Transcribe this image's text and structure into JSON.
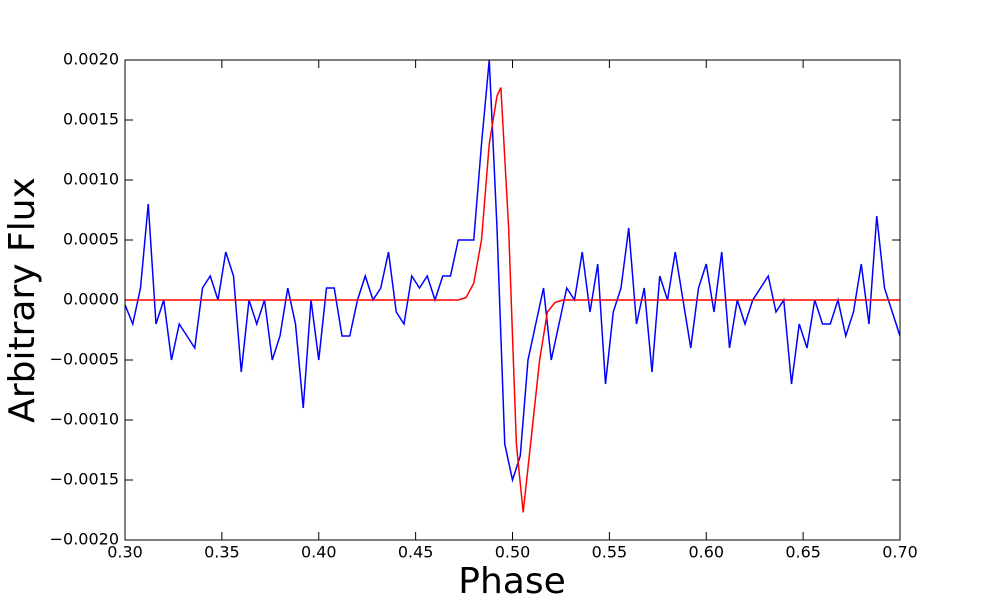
{
  "chart_data": {
    "type": "line",
    "xlabel": "Phase",
    "ylabel": "Arbitrary Flux",
    "xlim": [
      0.3,
      0.7
    ],
    "ylim": [
      -0.002,
      0.002
    ],
    "xticks": [
      {
        "value": 0.3,
        "label": "0.30"
      },
      {
        "value": 0.35,
        "label": "0.35"
      },
      {
        "value": 0.4,
        "label": "0.40"
      },
      {
        "value": 0.45,
        "label": "0.45"
      },
      {
        "value": 0.5,
        "label": "0.50"
      },
      {
        "value": 0.55,
        "label": "0.55"
      },
      {
        "value": 0.6,
        "label": "0.60"
      },
      {
        "value": 0.65,
        "label": "0.65"
      },
      {
        "value": 0.7,
        "label": "0.70"
      }
    ],
    "yticks": [
      {
        "value": -0.002,
        "label": "−0.0020"
      },
      {
        "value": -0.0015,
        "label": "−0.0015"
      },
      {
        "value": -0.001,
        "label": "−0.0010"
      },
      {
        "value": -0.0005,
        "label": "−0.0005"
      },
      {
        "value": 0,
        "label": "0.0000"
      },
      {
        "value": 0.0005,
        "label": "0.0005"
      },
      {
        "value": 0.001,
        "label": "0.0010"
      },
      {
        "value": 0.0015,
        "label": "0.0015"
      },
      {
        "value": 0.002,
        "label": "0.0020"
      }
    ],
    "series": [
      {
        "color": "#0000ff",
        "x": [
          0.3,
          0.304,
          0.308,
          0.312,
          0.316,
          0.32,
          0.324,
          0.328,
          0.332,
          0.336,
          0.34,
          0.344,
          0.348,
          0.352,
          0.356,
          0.36,
          0.364,
          0.368,
          0.372,
          0.376,
          0.38,
          0.384,
          0.388,
          0.392,
          0.396,
          0.4,
          0.404,
          0.408,
          0.412,
          0.416,
          0.42,
          0.424,
          0.428,
          0.432,
          0.436,
          0.44,
          0.444,
          0.448,
          0.452,
          0.456,
          0.46,
          0.464,
          0.468,
          0.472,
          0.476,
          0.48,
          0.484,
          0.488,
          0.492,
          0.496,
          0.5,
          0.504,
          0.508,
          0.512,
          0.516,
          0.52,
          0.524,
          0.528,
          0.532,
          0.536,
          0.54,
          0.544,
          0.548,
          0.552,
          0.556,
          0.56,
          0.564,
          0.568,
          0.572,
          0.576,
          0.58,
          0.584,
          0.588,
          0.592,
          0.596,
          0.6,
          0.604,
          0.608,
          0.612,
          0.616,
          0.62,
          0.624,
          0.628,
          0.632,
          0.636,
          0.64,
          0.644,
          0.648,
          0.652,
          0.656,
          0.66,
          0.664,
          0.668,
          0.672,
          0.676,
          0.68,
          0.684,
          0.688,
          0.692,
          0.696,
          0.7
        ],
        "values": [
          -4e-05,
          -0.0002,
          0.0001,
          0.0008,
          -0.0002,
          0,
          -0.0005,
          -0.0002,
          -0.0003,
          -0.0004,
          0.0001,
          0.0002,
          0,
          0.0004,
          0.0002,
          -0.0006,
          0,
          -0.0002,
          0,
          -0.0005,
          -0.0003,
          0.0001,
          -0.0002,
          -0.0009,
          0,
          -0.0005,
          0.0001,
          0.0001,
          -0.0003,
          -0.0003,
          0,
          0.0002,
          0,
          0.0001,
          0.0004,
          -0.0001,
          -0.0002,
          0.0002,
          0.0001,
          0.0002,
          0,
          0.0002,
          0.0002,
          0.0005,
          0.0005,
          0.0005,
          0.0013,
          0.002,
          0.0006,
          -0.0012,
          -0.0015,
          -0.0013,
          -0.0005,
          -0.0002,
          0.0001,
          -0.0005,
          -0.0002,
          0.0001,
          0,
          0.0004,
          -0.0001,
          0.0003,
          -0.0007,
          -0.0001,
          0.0001,
          0.0006,
          -0.0002,
          0.0001,
          -0.0006,
          0.0002,
          0,
          0.0004,
          0,
          -0.0004,
          0.0001,
          0.0003,
          -0.0001,
          0.0004,
          -0.0004,
          0,
          -0.0002,
          0,
          0.0001,
          0.0002,
          -0.0001,
          0,
          -0.0007,
          -0.0002,
          -0.0004,
          0,
          -0.0002,
          -0.0002,
          0,
          -0.0003,
          -0.0001,
          0.0003,
          -0.0002,
          0.0007,
          0.0001,
          -0.0001,
          -0.0003
        ]
      },
      {
        "color": "#ff0000",
        "x": [
          0.3,
          0.472,
          0.476,
          0.48,
          0.484,
          0.488,
          0.492,
          0.494,
          0.498,
          0.502,
          0.5055,
          0.51,
          0.514,
          0.518,
          0.522,
          0.526,
          0.7
        ],
        "values": [
          0,
          0,
          2e-05,
          0.00014,
          0.0005,
          0.0013,
          0.0017,
          0.00177,
          0.0006,
          -0.0012,
          -0.00177,
          -0.0011,
          -0.0005,
          -0.0001,
          -2e-05,
          0,
          0
        ]
      }
    ]
  }
}
